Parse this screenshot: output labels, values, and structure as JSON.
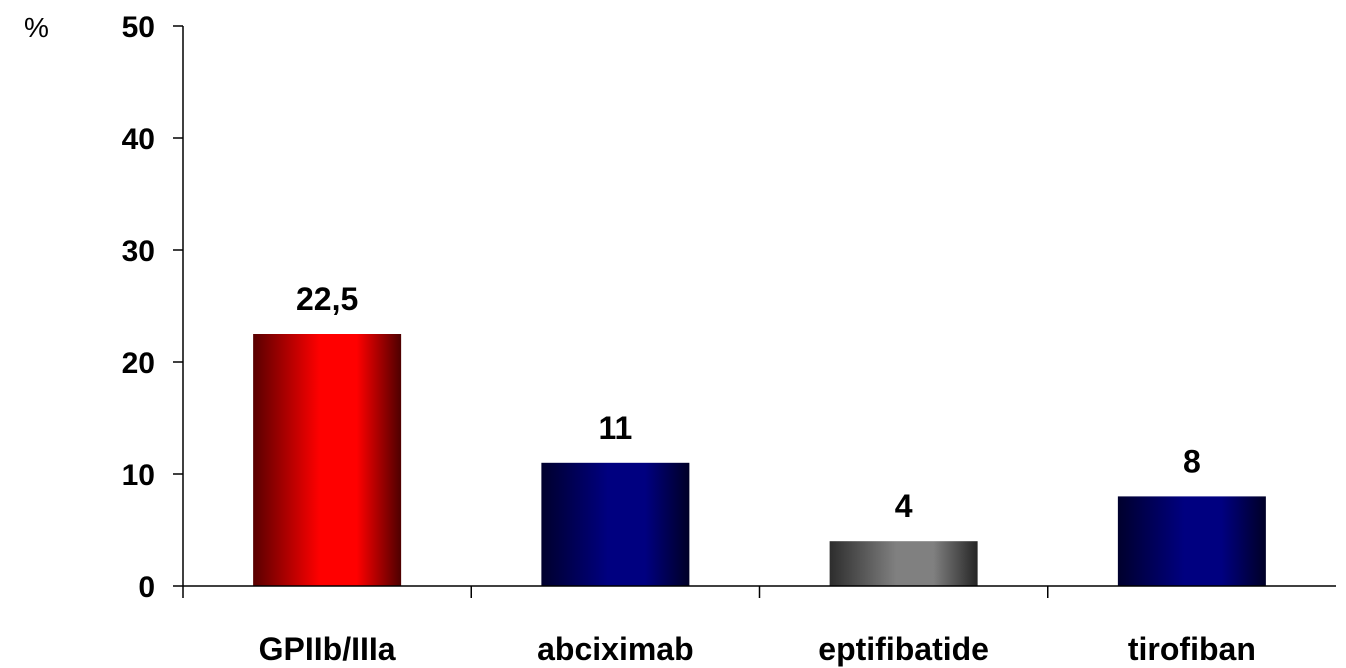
{
  "chart_data": {
    "type": "bar",
    "title": "",
    "xlabel": "",
    "ylabel": "%",
    "ylim": [
      0,
      50
    ],
    "yticks": [
      0,
      10,
      20,
      30,
      40,
      50
    ],
    "grid": false,
    "legend": false,
    "categories": [
      "GPIIb/IIIa",
      "abciximab",
      "eptifibatide",
      "tirofiban"
    ],
    "values": [
      22.5,
      11,
      4,
      8
    ],
    "data_labels": [
      "22,5",
      "11",
      "4",
      "8"
    ],
    "colors": [
      "#ff0000",
      "#000080",
      "#808080",
      "#000080"
    ]
  }
}
